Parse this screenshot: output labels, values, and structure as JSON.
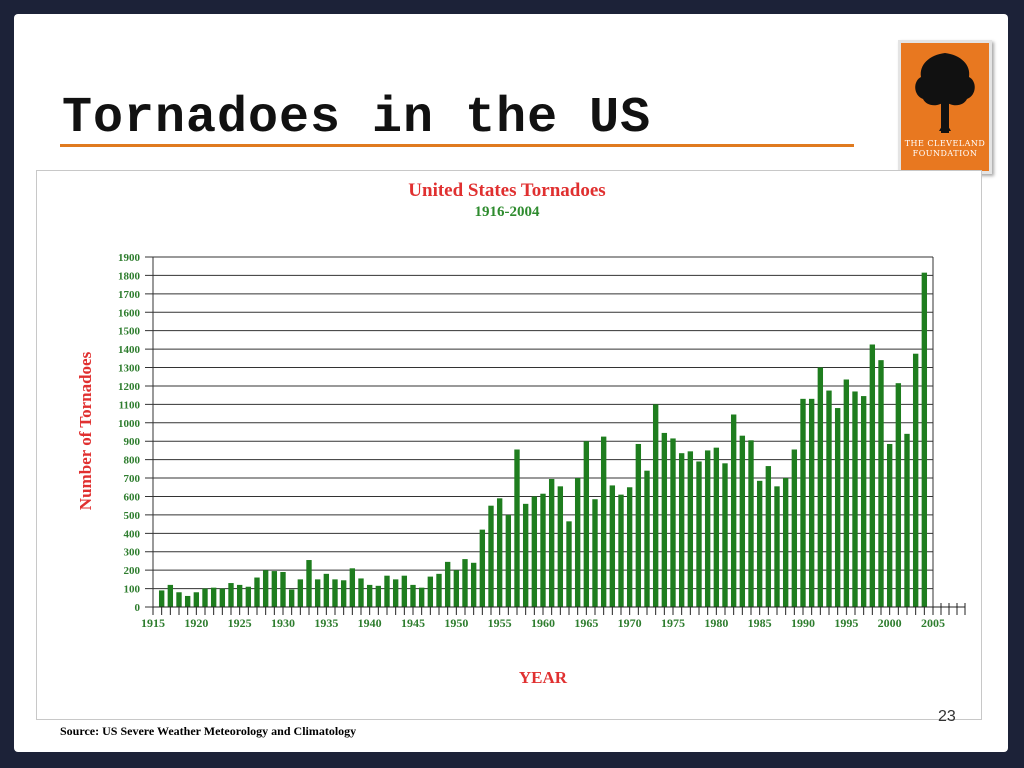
{
  "slide": {
    "title": "Tornadoes in the US",
    "source": "Source: US Severe Weather Meteorology and Climatology",
    "page_number": "23",
    "logo": {
      "line1": "THE CLEVELAND",
      "line2": "FOUNDATION",
      "icon": "tree-icon",
      "color": "#e87820"
    }
  },
  "chart_data": {
    "type": "bar",
    "title": "United States Tornadoes",
    "subtitle": "1916-2004",
    "xlabel": "YEAR",
    "ylabel": "Number of Tornadoes",
    "ylim": [
      0,
      1900
    ],
    "yticks": [
      0,
      100,
      200,
      300,
      400,
      500,
      600,
      700,
      800,
      900,
      1000,
      1100,
      1200,
      1300,
      1400,
      1500,
      1600,
      1700,
      1800,
      1900
    ],
    "xlim": [
      1915,
      2005
    ],
    "xticks": [
      1915,
      1920,
      1925,
      1930,
      1935,
      1940,
      1945,
      1950,
      1955,
      1960,
      1965,
      1970,
      1975,
      1980,
      1985,
      1990,
      1995,
      2000,
      2005
    ],
    "grid": true,
    "bar_color": "#1e7d1e",
    "title_color": "#e03030",
    "subtitle_color": "#2e8b2e",
    "x": [
      1916,
      1917,
      1918,
      1919,
      1920,
      1921,
      1922,
      1923,
      1924,
      1925,
      1926,
      1927,
      1928,
      1929,
      1930,
      1931,
      1932,
      1933,
      1934,
      1935,
      1936,
      1937,
      1938,
      1939,
      1940,
      1941,
      1942,
      1943,
      1944,
      1945,
      1946,
      1947,
      1948,
      1949,
      1950,
      1951,
      1952,
      1953,
      1954,
      1955,
      1956,
      1957,
      1958,
      1959,
      1960,
      1961,
      1962,
      1963,
      1964,
      1965,
      1966,
      1967,
      1968,
      1969,
      1970,
      1971,
      1972,
      1973,
      1974,
      1975,
      1976,
      1977,
      1978,
      1979,
      1980,
      1981,
      1982,
      1983,
      1984,
      1985,
      1986,
      1987,
      1988,
      1989,
      1990,
      1991,
      1992,
      1993,
      1994,
      1995,
      1996,
      1997,
      1998,
      1999,
      2000,
      2001,
      2002,
      2003,
      2004
    ],
    "values": [
      90,
      120,
      80,
      60,
      80,
      100,
      105,
      100,
      130,
      120,
      110,
      160,
      200,
      195,
      190,
      95,
      150,
      255,
      150,
      180,
      150,
      145,
      210,
      155,
      120,
      115,
      170,
      150,
      170,
      120,
      105,
      165,
      180,
      245,
      200,
      260,
      240,
      420,
      550,
      590,
      500,
      855,
      560,
      600,
      615,
      695,
      655,
      465,
      700,
      900,
      585,
      925,
      660,
      610,
      650,
      885,
      740,
      1100,
      945,
      915,
      835,
      845,
      790,
      850,
      865,
      780,
      1045,
      930,
      905,
      685,
      765,
      655,
      700,
      855,
      1130,
      1130,
      1300,
      1175,
      1080,
      1235,
      1170,
      1145,
      1425,
      1340,
      885,
      1215,
      940,
      1375,
      1815
    ]
  }
}
